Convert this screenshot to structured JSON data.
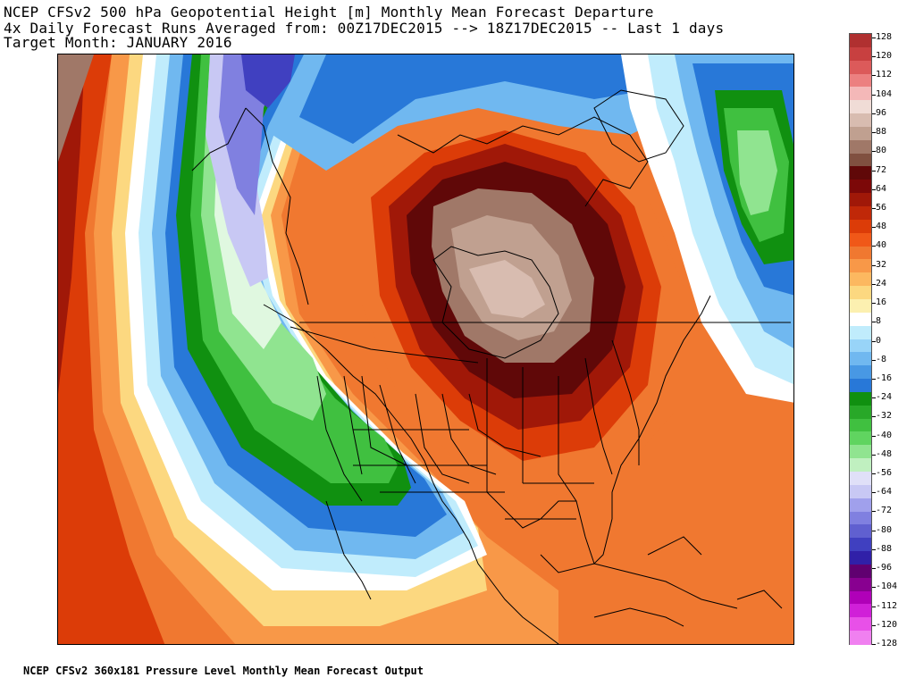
{
  "title": {
    "line1": "NCEP CFSv2 500 hPa Geopotential Height [m] Monthly Mean Forecast Departure",
    "line2": "4x Daily Forecast Runs Averaged from: 00Z17DEC2015 --> 18Z17DEC2015 -- Last 1 days",
    "line3": "Target Month: JANUARY 2016"
  },
  "footer": "NCEP CFSv2 360x181 Pressure Level Monthly Mean Forecast Output",
  "colorbar": {
    "levels": [
      128,
      120,
      112,
      104,
      96,
      88,
      80,
      72,
      64,
      56,
      48,
      40,
      32,
      24,
      16,
      8,
      0,
      -8,
      -16,
      -24,
      -32,
      -40,
      -48,
      -56,
      -64,
      -72,
      -80,
      -88,
      -96,
      -104,
      -112,
      -120,
      -128
    ],
    "labels": [
      "128",
      "120",
      "112",
      "104",
      "96",
      "88",
      "80",
      "72",
      "64",
      "56",
      "48",
      "40",
      "32",
      "24",
      "16",
      "8",
      "0",
      "-8",
      "-16",
      "-24",
      "-32",
      "-40",
      "-48",
      "-56",
      "-64",
      "-72",
      "-80",
      "-88",
      "-96",
      "-104",
      "-112",
      "-120",
      "-128"
    ],
    "colors": [
      "#b03030",
      "#c84040",
      "#dc5a5a",
      "#ec8080",
      "#f4b8b8",
      "#f0dcd6",
      "#d8bcb0",
      "#c0a090",
      "#a07868",
      "#805040",
      "#600808",
      "#7c0808",
      "#a01808",
      "#c02808",
      "#dc3c08",
      "#f05818",
      "#f07830",
      "#f89848",
      "#fcb860",
      "#fcd880",
      "#fcf0b0",
      "#ffffff",
      "#c0ecfc",
      "#98d4f8",
      "#70b8f0",
      "#4898e4",
      "#2878d8",
      "#109010",
      "#28a828",
      "#40c040",
      "#60d460",
      "#90e490",
      "#c0f0c0",
      "#e0e0f8",
      "#c8c8f4",
      "#a0a0ec",
      "#8080e0",
      "#6060d0",
      "#4040c0",
      "#3020a8",
      "#600070",
      "#880090",
      "#b000b8",
      "#d020d8",
      "#e850e8",
      "#f080f0"
    ]
  },
  "map_colors": {
    "ocean_pos_far": "#f07830",
    "pos_near": "#f89848",
    "pos_weak": "#fcb860",
    "pos_light": "#fcd880",
    "neutral": "#ffffff",
    "neg_light": "#c0ecfc",
    "neg_med": "#70b8f0",
    "neg_strong": "#2878d8",
    "green_dark": "#109010",
    "green": "#40c040",
    "green_light": "#90e490",
    "lavender": "#c8c8f4",
    "purple": "#8080e0",
    "purple_dark": "#4040c0",
    "red": "#dc3c08",
    "red_dark": "#a01808",
    "maroon": "#600808",
    "brown": "#a07868",
    "brown_light": "#c0a090",
    "brown_pale": "#d8bcb0"
  }
}
